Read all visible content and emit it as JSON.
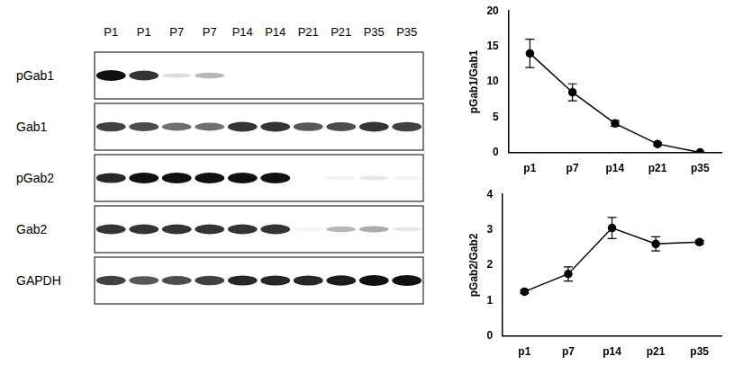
{
  "blot": {
    "lanes": [
      "P1",
      "P1",
      "P7",
      "P7",
      "P14",
      "P14",
      "P21",
      "P21",
      "P35",
      "P35"
    ],
    "rows": [
      {
        "label": "pGab1",
        "bands": [
          1,
          0.85,
          0.15,
          0.3,
          0,
          0,
          0,
          0,
          0,
          0
        ]
      },
      {
        "label": "Gab1",
        "bands": [
          0.8,
          0.75,
          0.6,
          0.6,
          0.85,
          0.85,
          0.7,
          0.75,
          0.85,
          0.8
        ]
      },
      {
        "label": "pGab2",
        "bands": [
          0.9,
          1,
          1,
          1,
          1,
          1,
          0,
          0.05,
          0.1,
          0.05
        ]
      },
      {
        "label": "Gab2",
        "bands": [
          0.85,
          0.85,
          0.85,
          0.85,
          0.85,
          0.85,
          0.05,
          0.3,
          0.35,
          0.1
        ]
      },
      {
        "label": "GAPDH",
        "bands": [
          0.8,
          0.7,
          0.75,
          0.8,
          0.9,
          0.9,
          0.9,
          0.95,
          1,
          1
        ]
      }
    ]
  },
  "chart_data": [
    {
      "type": "line",
      "y_label": "pGab1/Gab1",
      "categories": [
        "p1",
        "p7",
        "p14",
        "p21",
        "p35"
      ],
      "values": [
        14,
        8.5,
        4.1,
        1.2,
        0
      ],
      "errors": [
        2,
        1.2,
        0.4,
        0.2,
        0
      ],
      "color": "#000000",
      "marker": "circle",
      "ylim": [
        0,
        20
      ],
      "yticks": [
        0,
        5,
        10,
        15,
        20
      ],
      "grid": false
    },
    {
      "type": "line",
      "y_label": "pGab2/Gab2",
      "categories": [
        "p1",
        "p7",
        "p14",
        "p21",
        "p35"
      ],
      "values": [
        1.25,
        1.75,
        3.05,
        2.6,
        2.65
      ],
      "errors": [
        0.05,
        0.2,
        0.3,
        0.2,
        0.05
      ],
      "color": "#000000",
      "marker": "circle",
      "ylim": [
        0,
        4
      ],
      "yticks": [
        0,
        1,
        2,
        3,
        4
      ],
      "grid": false
    }
  ]
}
